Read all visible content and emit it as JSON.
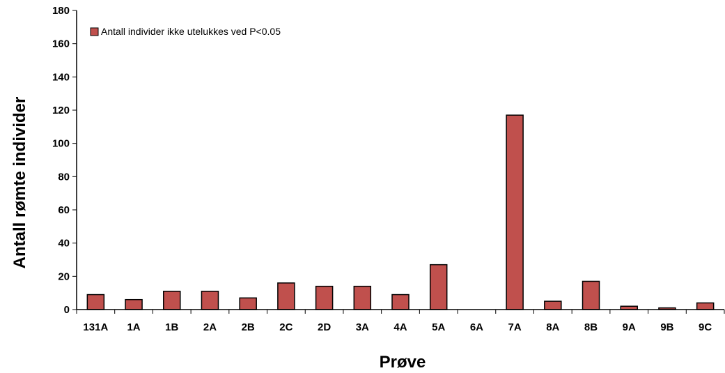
{
  "chart_data": {
    "type": "bar",
    "title": "",
    "xlabel": "Prøve",
    "ylabel": "Antall rømte individer",
    "ylim": [
      0,
      180
    ],
    "yticks": [
      0,
      20,
      40,
      60,
      80,
      100,
      120,
      140,
      160,
      180
    ],
    "categories": [
      "131A",
      "1A",
      "1B",
      "2A",
      "2B",
      "2C",
      "2D",
      "3A",
      "4A",
      "5A",
      "6A",
      "7A",
      "8A",
      "8B",
      "9A",
      "9B",
      "9C"
    ],
    "series": [
      {
        "name": "Antall individer ikke utelukkes ved P<0.05",
        "color": "#C0504D",
        "values": [
          9,
          6,
          11,
          11,
          7,
          16,
          14,
          14,
          9,
          27,
          0,
          117,
          5,
          17,
          2,
          1,
          4
        ]
      }
    ],
    "legend_position": "top-left",
    "grid": false
  }
}
